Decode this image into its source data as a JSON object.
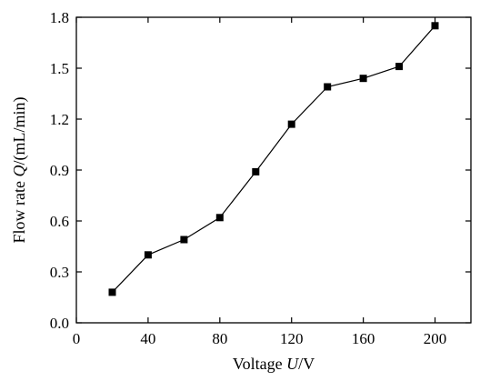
{
  "chart_data": {
    "type": "line",
    "xlabel_prefix": "Voltage ",
    "xlabel_var": "U",
    "xlabel_suffix": "/V",
    "ylabel_prefix": "Flow rate ",
    "ylabel_var": "Q",
    "ylabel_suffix": "/(mL/min)",
    "xlim": [
      0,
      220
    ],
    "ylim": [
      0,
      1.8
    ],
    "xticks": [
      0,
      40,
      80,
      120,
      160,
      200
    ],
    "xtick_labels": [
      "0",
      "40",
      "80",
      "120",
      "160",
      "200"
    ],
    "yticks": [
      0,
      0.3,
      0.6,
      0.9,
      1.2,
      1.5,
      1.8
    ],
    "ytick_labels": [
      "0.0",
      "0.3",
      "0.6",
      "0.9",
      "1.2",
      "1.5",
      "1.8"
    ],
    "grid": false,
    "series": [
      {
        "marker": "square",
        "color": "#000000",
        "x": [
          20,
          40,
          60,
          80,
          100,
          120,
          140,
          160,
          180,
          200
        ],
        "y": [
          0.18,
          0.4,
          0.49,
          0.62,
          0.89,
          1.17,
          1.39,
          1.44,
          1.51,
          1.75
        ]
      }
    ]
  }
}
